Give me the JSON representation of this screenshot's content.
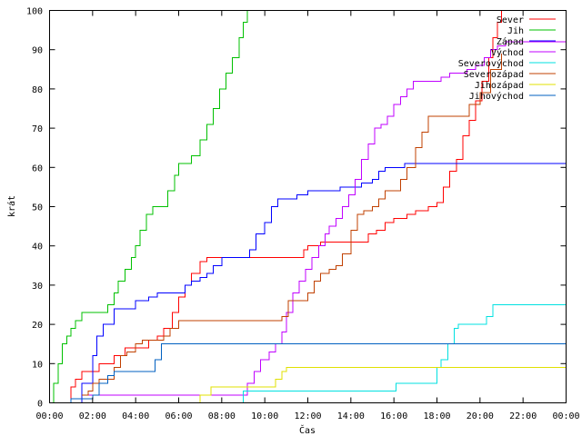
{
  "chart_data": {
    "type": "line",
    "xlabel": "Čas",
    "ylabel": "krát",
    "xlim": [
      0,
      24
    ],
    "ylim": [
      0,
      100
    ],
    "grid": false,
    "legend_position": "top-right",
    "xticks": [
      {
        "value": 0,
        "label": "00:00"
      },
      {
        "value": 2,
        "label": "02:00"
      },
      {
        "value": 4,
        "label": "04:00"
      },
      {
        "value": 6,
        "label": "06:00"
      },
      {
        "value": 8,
        "label": "08:00"
      },
      {
        "value": 10,
        "label": "10:00"
      },
      {
        "value": 12,
        "label": "12:00"
      },
      {
        "value": 14,
        "label": "14:00"
      },
      {
        "value": 16,
        "label": "16:00"
      },
      {
        "value": 18,
        "label": "18:00"
      },
      {
        "value": 20,
        "label": "20:00"
      },
      {
        "value": 22,
        "label": "22:00"
      },
      {
        "value": 24,
        "label": "00:00"
      }
    ],
    "yticks": [
      {
        "value": 0,
        "label": "0"
      },
      {
        "value": 10,
        "label": "10"
      },
      {
        "value": 20,
        "label": "20"
      },
      {
        "value": 30,
        "label": "30"
      },
      {
        "value": 40,
        "label": "40"
      },
      {
        "value": 50,
        "label": "50"
      },
      {
        "value": 60,
        "label": "60"
      },
      {
        "value": 70,
        "label": "70"
      },
      {
        "value": 80,
        "label": "80"
      },
      {
        "value": 90,
        "label": "90"
      },
      {
        "value": 100,
        "label": "100"
      }
    ],
    "series": [
      {
        "name": "Sever",
        "color": "#ff0000",
        "x": [
          0.9,
          1.0,
          1.2,
          1.5,
          2.0,
          2.3,
          3.0,
          3.5,
          4.0,
          4.6,
          5.0,
          5.3,
          5.7,
          6.0,
          6.3,
          6.6,
          7.0,
          7.3,
          9.0,
          11.0,
          11.8,
          12.0,
          12.6,
          13.0,
          14.0,
          14.8,
          15.2,
          15.6,
          16.0,
          16.6,
          17.0,
          17.6,
          18.0,
          18.3,
          18.6,
          18.9,
          19.2,
          19.5,
          19.8,
          20.1,
          20.4,
          20.6,
          20.8,
          21.0
        ],
        "y": [
          0,
          4,
          6,
          8,
          8,
          10,
          12,
          14,
          14,
          16,
          17,
          19,
          23,
          27,
          30,
          33,
          36,
          37,
          37,
          37,
          39,
          40,
          41,
          41,
          41,
          43,
          44,
          46,
          47,
          48,
          49,
          50,
          51,
          55,
          59,
          62,
          68,
          72,
          77,
          82,
          88,
          93,
          97,
          100
        ]
      },
      {
        "name": "Jih",
        "color": "#00c000",
        "x": [
          0,
          0.2,
          0.4,
          0.6,
          0.8,
          1.0,
          1.2,
          1.5,
          2.5,
          2.7,
          3.0,
          3.2,
          3.5,
          3.8,
          4.0,
          4.2,
          4.5,
          4.8,
          5.2,
          5.5,
          5.8,
          6.0,
          6.3,
          6.6,
          7.0,
          7.3,
          7.6,
          7.9,
          8.2,
          8.5,
          8.8,
          9.0,
          9.2
        ],
        "y": [
          0,
          5,
          10,
          15,
          17,
          19,
          21,
          23,
          23,
          25,
          28,
          31,
          34,
          37,
          40,
          44,
          48,
          50,
          50,
          54,
          58,
          61,
          61,
          63,
          67,
          71,
          75,
          80,
          84,
          88,
          93,
          97,
          100
        ]
      },
      {
        "name": "Západ",
        "color": "#0000ff",
        "x": [
          1.2,
          1.5,
          2.0,
          2.2,
          2.5,
          3.0,
          3.5,
          4.0,
          4.6,
          5.0,
          6.0,
          6.3,
          6.6,
          7.0,
          7.3,
          7.6,
          8.0,
          8.3,
          9.0,
          9.3,
          9.6,
          10.0,
          10.3,
          10.6,
          11.0,
          11.5,
          12.0,
          12.5,
          13.0,
          13.5,
          14.0,
          14.5,
          15.0,
          15.3,
          15.6,
          16.0,
          16.5,
          17.0,
          18.0,
          24.0
        ],
        "y": [
          0,
          5,
          12,
          17,
          20,
          24,
          24,
          26,
          27,
          28,
          28,
          30,
          31,
          32,
          33,
          35,
          37,
          37,
          37,
          39,
          43,
          46,
          50,
          52,
          52,
          53,
          54,
          54,
          54,
          55,
          55,
          56,
          57,
          59,
          60,
          60,
          61,
          61,
          61,
          61
        ]
      },
      {
        "name": "Východ",
        "color": "#c000ff",
        "x": [
          1.6,
          4.0,
          6.0,
          6.8,
          7.0,
          9.0,
          9.2,
          9.5,
          9.8,
          10.2,
          10.5,
          10.8,
          11.0,
          11.3,
          11.6,
          11.9,
          12.2,
          12.5,
          12.8,
          13.0,
          13.3,
          13.6,
          13.9,
          14.2,
          14.5,
          14.8,
          15.1,
          15.4,
          15.7,
          16.0,
          16.3,
          16.6,
          16.9,
          17.2,
          17.5,
          17.8,
          18.2,
          18.6,
          19.0,
          19.4,
          19.8,
          20.2,
          20.5,
          20.8,
          21.2,
          22.0,
          24.0
        ],
        "y": [
          2,
          2,
          2,
          2,
          2,
          2,
          5,
          8,
          11,
          13,
          15,
          18,
          23,
          28,
          31,
          34,
          37,
          40,
          43,
          45,
          47,
          50,
          53,
          57,
          62,
          66,
          70,
          71,
          73,
          76,
          78,
          80,
          82,
          82,
          82,
          82,
          83,
          84,
          84,
          85,
          86,
          88,
          90,
          91,
          92,
          92,
          92
        ]
      },
      {
        "name": "Severovýchod",
        "color": "#00e0e0",
        "x": [
          8.7,
          9.0,
          11.0,
          12.0,
          16.0,
          16.1,
          18.0,
          18.2,
          18.5,
          18.8,
          19.0,
          19.5,
          20.0,
          20.3,
          20.6,
          21.0,
          24.0
        ],
        "y": [
          0,
          3,
          3,
          3,
          3,
          5,
          9,
          11,
          15,
          19,
          20,
          20,
          20,
          22,
          25,
          25,
          25
        ]
      },
      {
        "name": "Severozápad",
        "color": "#c04000",
        "x": [
          1.5,
          1.8,
          2.0,
          2.3,
          2.5,
          3.0,
          3.3,
          3.6,
          4.0,
          4.3,
          4.6,
          5.0,
          5.3,
          5.6,
          6.0,
          6.5,
          7.0,
          8.0,
          10.0,
          10.5,
          10.8,
          11.1,
          11.5,
          12.0,
          12.3,
          12.6,
          13.0,
          13.3,
          13.6,
          14.0,
          14.3,
          14.6,
          15.0,
          15.3,
          15.6,
          16.0,
          16.3,
          16.6,
          17.0,
          17.3,
          17.6,
          18.0,
          18.5,
          19.0,
          19.5,
          20.0,
          20.5,
          21.0
        ],
        "y": [
          2,
          3,
          5,
          6,
          6,
          9,
          12,
          13,
          15,
          16,
          16,
          16,
          17,
          19,
          21,
          21,
          21,
          21,
          21,
          21,
          22,
          26,
          26,
          28,
          31,
          33,
          34,
          35,
          38,
          44,
          48,
          49,
          50,
          52,
          54,
          54,
          57,
          60,
          65,
          69,
          73,
          73,
          73,
          73,
          76,
          79,
          85,
          89
        ]
      },
      {
        "name": "Jihozápad",
        "color": "#e0e000",
        "x": [
          6.7,
          7.0,
          7.5,
          8.0,
          10.3,
          10.5,
          10.8,
          11.0,
          24.0
        ],
        "y": [
          0,
          2,
          4,
          4,
          4,
          6,
          8,
          9,
          9
        ]
      },
      {
        "name": "Jihovýchod",
        "color": "#0060c0",
        "x": [
          0.6,
          1.0,
          2.0,
          2.3,
          2.7,
          3.0,
          3.5,
          4.0,
          4.6,
          4.9,
          5.2,
          6.0,
          10.0,
          14.0,
          18.0,
          24.0
        ],
        "y": [
          0,
          1,
          2,
          5,
          7,
          8,
          8,
          8,
          8,
          11,
          15,
          15,
          15,
          15,
          15,
          15
        ]
      }
    ]
  }
}
